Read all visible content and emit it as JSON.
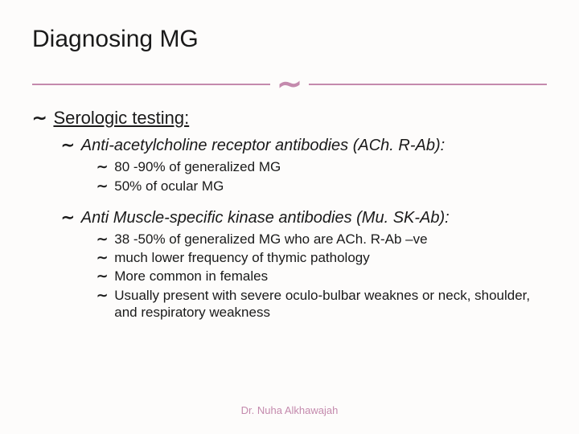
{
  "colors": {
    "accent": "#c48aad",
    "text": "#1a1a1a",
    "background": "#fdfcfb"
  },
  "bullet_symbol": "་",
  "title": "Diagnosing MG",
  "section1": {
    "heading": "Serologic testing:",
    "sub1": {
      "heading": "Anti-acetylcholine receptor antibodies (ACh. R-Ab):",
      "items": [
        "80 -90% of generalized MG",
        "50% of ocular MG"
      ]
    },
    "sub2": {
      "heading": "Anti Muscle-specific kinase antibodies (Mu. SK-Ab):",
      "items": [
        "38 -50% of generalized MG who are ACh. R-Ab –ve",
        "much lower frequency of thymic pathology",
        "More common in females",
        "Usually present with severe oculo-bulbar weaknes or neck, shoulder, and respiratory weakness"
      ]
    }
  },
  "footer": "Dr. Nuha Alkhawajah"
}
